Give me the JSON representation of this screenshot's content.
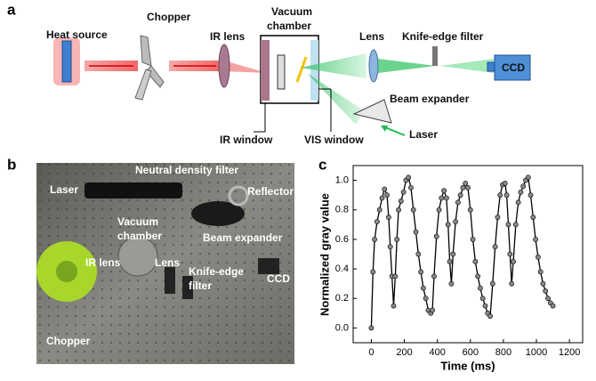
{
  "panel_labels": [
    "a",
    "b",
    "c"
  ],
  "diagram": {
    "heat_source": "Heat source",
    "chopper": "Chopper",
    "ir_lens": "IR lens",
    "vacuum_chamber": [
      "Vacuum",
      "chamber"
    ],
    "lens": "Lens",
    "knife_edge_filter": "Knife-edge filter",
    "ccd": "CCD",
    "beam_expander": "Beam expander",
    "laser": "Laser",
    "ir_window": "IR window",
    "vis_window": "VIS window"
  },
  "photo": {
    "laser": "Laser",
    "neutral_density_filter": "Neutral density filter",
    "reflector": "Reflector",
    "vacuum_chamber": [
      "Vacuum",
      "chamber"
    ],
    "beam_expander": "Beam expander",
    "ir_lens": "IR lens",
    "lens": "Lens",
    "knife_edge_filter": [
      "Knife-edge",
      "filter"
    ],
    "ccd": "CCD",
    "chopper": "Chopper"
  },
  "chart_data": {
    "type": "line",
    "x_label": "Time (ms)",
    "y_label": "Normalized gray value",
    "x": [
      0,
      10,
      20,
      35,
      50,
      65,
      80,
      95,
      105,
      115,
      125,
      135,
      145,
      155,
      165,
      180,
      195,
      210,
      225,
      240,
      255,
      270,
      285,
      300,
      315,
      330,
      345,
      360,
      370,
      380,
      395,
      410,
      425,
      440,
      455,
      465,
      475,
      485,
      495,
      510,
      525,
      540,
      555,
      570,
      585,
      600,
      615,
      630,
      645,
      660,
      675,
      690,
      705,
      720,
      735,
      750,
      765,
      780,
      795,
      810,
      820,
      830,
      840,
      850,
      860,
      875,
      890,
      905,
      920,
      935,
      950,
      965,
      980,
      995,
      1010,
      1025,
      1040,
      1055,
      1070,
      1085,
      1100
    ],
    "series": [
      {
        "color": "#000000",
        "values": [
          0,
          0.38,
          0.6,
          0.72,
          0.8,
          0.88,
          0.94,
          0.9,
          0.75,
          0.55,
          0.35,
          0.15,
          0.35,
          0.6,
          0.8,
          0.86,
          0.92,
          1.0,
          1.02,
          0.95,
          0.8,
          0.65,
          0.5,
          0.38,
          0.27,
          0.2,
          0.12,
          0.1,
          0.12,
          0.35,
          0.62,
          0.8,
          0.88,
          0.93,
          0.88,
          0.7,
          0.45,
          0.3,
          0.5,
          0.72,
          0.85,
          0.9,
          0.95,
          0.98,
          0.95,
          0.8,
          0.6,
          0.45,
          0.35,
          0.27,
          0.2,
          0.15,
          0.1,
          0.08,
          0.3,
          0.55,
          0.75,
          0.9,
          0.97,
          0.98,
          0.9,
          0.7,
          0.5,
          0.3,
          0.45,
          0.7,
          0.85,
          0.92,
          0.96,
          1.0,
          1.02,
          0.9,
          0.75,
          0.6,
          0.48,
          0.38,
          0.3,
          0.25,
          0.2,
          0.17,
          0.15
        ]
      }
    ],
    "xlim": [
      -110,
      1280
    ],
    "ylim": [
      -0.1,
      1.1
    ],
    "xticks": [
      0,
      200,
      400,
      600,
      800,
      1000,
      1200
    ],
    "yticks": [
      {
        "value": 0,
        "label": "0.0"
      },
      {
        "value": 0.2,
        "label": "0.2"
      },
      {
        "value": 0.4,
        "label": "0.4"
      },
      {
        "value": 0.6,
        "label": "0.6"
      },
      {
        "value": 0.8,
        "label": "0.8"
      },
      {
        "value": 1,
        "label": "1.0"
      }
    ]
  }
}
